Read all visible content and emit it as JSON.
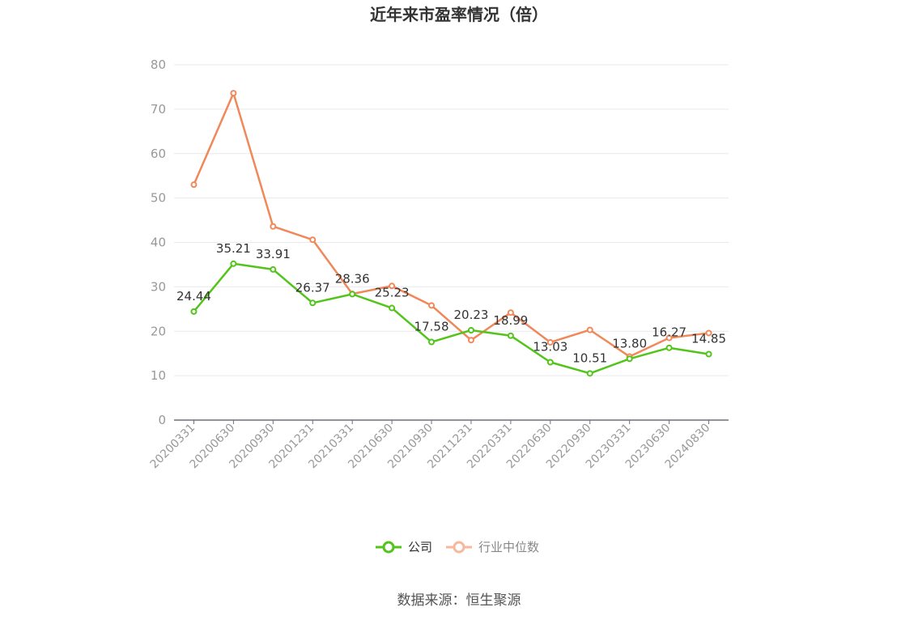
{
  "chart_data": {
    "type": "line",
    "title": "近年来市盈率情况（倍）",
    "categories": [
      "20200331",
      "20200630",
      "20200930",
      "20201231",
      "20210331",
      "20210630",
      "20210930",
      "20211231",
      "20220331",
      "20220630",
      "20220930",
      "20230331",
      "20230630",
      "20240830"
    ],
    "ylim": [
      0,
      80
    ],
    "yticks": [
      0,
      10,
      20,
      30,
      40,
      50,
      60,
      70,
      80
    ],
    "grid": true,
    "legend_position": "bottom",
    "series": [
      {
        "name": "公司",
        "color": "#52c41a",
        "values": [
          24.44,
          35.21,
          33.91,
          26.37,
          28.36,
          25.23,
          17.58,
          20.23,
          18.99,
          13.03,
          10.51,
          13.8,
          16.27,
          14.85
        ],
        "labels": [
          "24.44",
          "35.21",
          "33.91",
          "26.37",
          "28.36",
          "25.23",
          "17.58",
          "20.23",
          "18.99",
          "13.03",
          "10.51",
          "13.80",
          "16.27",
          "14.85"
        ]
      },
      {
        "name": "行业中位数",
        "color": "#f0885a",
        "values": [
          53.0,
          73.6,
          43.6,
          40.6,
          28.4,
          30.2,
          25.8,
          18.0,
          24.2,
          17.5,
          20.3,
          14.3,
          18.5,
          19.6
        ]
      }
    ]
  },
  "source_text": "数据来源：恒生聚源"
}
